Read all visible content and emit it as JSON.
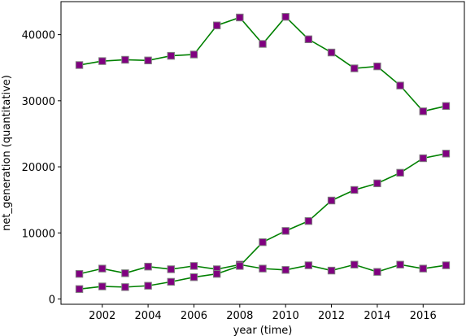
{
  "chart_data": {
    "type": "line",
    "xlabel": "year (time)",
    "ylabel": "net_generation (quantitative)",
    "xlim": [
      2000.2,
      2017.8
    ],
    "ylim": [
      -800,
      45000
    ],
    "xticks": [
      2002,
      2004,
      2006,
      2008,
      2010,
      2012,
      2014,
      2016
    ],
    "yticks": [
      0,
      10000,
      20000,
      30000,
      40000
    ],
    "grid": false,
    "line_color": "#008000",
    "marker_face_color": "#800080",
    "marker_edge_color": "#808080",
    "x": [
      2001,
      2002,
      2003,
      2004,
      2005,
      2006,
      2007,
      2008,
      2009,
      2010,
      2011,
      2012,
      2013,
      2014,
      2015,
      2016,
      2017
    ],
    "series": [
      {
        "values": [
          35400,
          36000,
          36200,
          36100,
          36800,
          37000,
          41400,
          42600,
          38600,
          42700,
          39300,
          37300,
          34900,
          35200,
          32300,
          28400,
          29200
        ]
      },
      {
        "values": [
          3800,
          4600,
          3900,
          4900,
          4500,
          5000,
          4500,
          5200,
          4600,
          4400,
          5100,
          4300,
          5200,
          4100,
          5200,
          4600,
          5100
        ]
      },
      {
        "values": [
          1500,
          1900,
          1800,
          2000,
          2600,
          3300,
          3800,
          5000,
          8600,
          10300,
          11800,
          14900,
          16500,
          17500,
          19100,
          21300,
          22000
        ]
      }
    ]
  }
}
